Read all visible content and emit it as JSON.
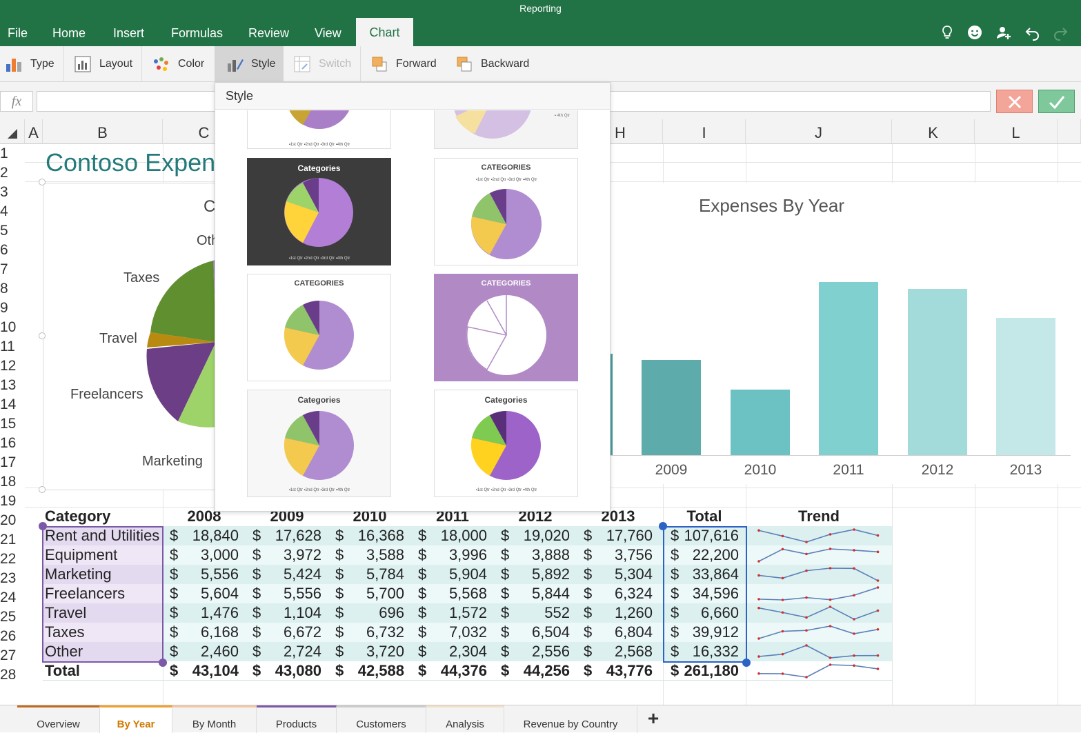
{
  "app": {
    "title": "Reporting",
    "tabs": [
      "File",
      "Home",
      "Insert",
      "Formulas",
      "Review",
      "View"
    ],
    "active_tab": "Chart",
    "accent": "#217346"
  },
  "ribbon": {
    "type": "Type",
    "layout": "Layout",
    "color": "Color",
    "style": "Style",
    "switch": "Switch",
    "forward": "Forward",
    "backward": "Backward"
  },
  "formula_bar": {
    "fx": "fx",
    "value": ""
  },
  "columns": [
    "A",
    "B",
    "C",
    "H",
    "I",
    "J",
    "K",
    "L"
  ],
  "rows": [
    "1",
    "2",
    "3",
    "4",
    "5",
    "6",
    "7",
    "8",
    "9",
    "10",
    "11",
    "12",
    "13",
    "14",
    "15",
    "16",
    "17",
    "18",
    "19",
    "20",
    "21",
    "22",
    "23",
    "24",
    "25",
    "26",
    "27",
    "28"
  ],
  "sheet": {
    "title": "Contoso Expen",
    "pie_chart": {
      "title_fragment": "C",
      "labels": {
        "other": "Oth",
        "taxes": "Taxes",
        "travel": "Travel",
        "freelancers": "Freelancers",
        "marketing": "Marketing"
      }
    },
    "bar_chart": {
      "title": "Expenses By Year"
    }
  },
  "chart_data": {
    "type": "bar",
    "title": "Expenses By Year",
    "categories": [
      "2009",
      "2010",
      "2011",
      "2012",
      "2013"
    ],
    "values": [
      43080,
      42588,
      44376,
      44256,
      43776
    ],
    "colors": [
      "#5eabab",
      "#6cc2c2",
      "#80d0d0",
      "#a3dada",
      "#c4e7e7"
    ]
  },
  "table": {
    "headers": [
      "Category",
      "2008",
      "2009",
      "2010",
      "2011",
      "2012",
      "2013",
      "Total",
      "Trend"
    ],
    "currency": "$",
    "rows": [
      {
        "category": "Rent and Utilities",
        "values": [
          "18,840",
          "17,628",
          "16,368",
          "18,000",
          "19,020",
          "17,760"
        ],
        "total": "107,616",
        "trend": [
          18840,
          17628,
          16368,
          18000,
          19020,
          17760
        ]
      },
      {
        "category": "Equipment",
        "values": [
          "3,000",
          "3,972",
          "3,588",
          "3,996",
          "3,888",
          "3,756"
        ],
        "total": "22,200",
        "trend": [
          3000,
          3972,
          3588,
          3996,
          3888,
          3756
        ]
      },
      {
        "category": "Marketing",
        "values": [
          "5,556",
          "5,424",
          "5,784",
          "5,904",
          "5,892",
          "5,304"
        ],
        "total": "33,864",
        "trend": [
          5556,
          5424,
          5784,
          5904,
          5892,
          5304
        ]
      },
      {
        "category": "Freelancers",
        "values": [
          "5,604",
          "5,556",
          "5,700",
          "5,568",
          "5,844",
          "6,324"
        ],
        "total": "34,596",
        "trend": [
          5604,
          5556,
          5700,
          5568,
          5844,
          6324
        ]
      },
      {
        "category": "Travel",
        "values": [
          "1,476",
          "1,104",
          "696",
          "1,572",
          "552",
          "1,260"
        ],
        "total": "6,660",
        "trend": [
          1476,
          1104,
          696,
          1572,
          552,
          1260
        ]
      },
      {
        "category": "Taxes",
        "values": [
          "6,168",
          "6,672",
          "6,732",
          "7,032",
          "6,504",
          "6,804"
        ],
        "total": "39,912",
        "trend": [
          6168,
          6672,
          6732,
          7032,
          6504,
          6804
        ]
      },
      {
        "category": "Other",
        "values": [
          "2,460",
          "2,724",
          "3,720",
          "2,304",
          "2,556",
          "2,568"
        ],
        "total": "16,332",
        "trend": [
          2460,
          2724,
          3720,
          2304,
          2556,
          2568
        ]
      }
    ],
    "total_row": {
      "category": "Total",
      "values": [
        "43,104",
        "43,080",
        "42,588",
        "44,376",
        "44,256",
        "43,776"
      ],
      "total": "261,180",
      "trend": [
        43104,
        43080,
        42588,
        44376,
        44256,
        43776
      ]
    }
  },
  "style_panel": {
    "title": "Style",
    "thumbs": [
      {
        "title": ""
      },
      {
        "title": ""
      },
      {
        "title": "Categories"
      },
      {
        "title": "CATEGORIES"
      },
      {
        "title": "CATEGORIES"
      },
      {
        "title": "CATEGORIES"
      },
      {
        "title": "Categories"
      },
      {
        "title": "Categories"
      }
    ]
  },
  "sheets": {
    "tabs": [
      "Overview",
      "By Year",
      "By Month",
      "Products",
      "Customers",
      "Analysis",
      "Revenue by Country"
    ],
    "active": "By Year",
    "add_label": "+"
  }
}
